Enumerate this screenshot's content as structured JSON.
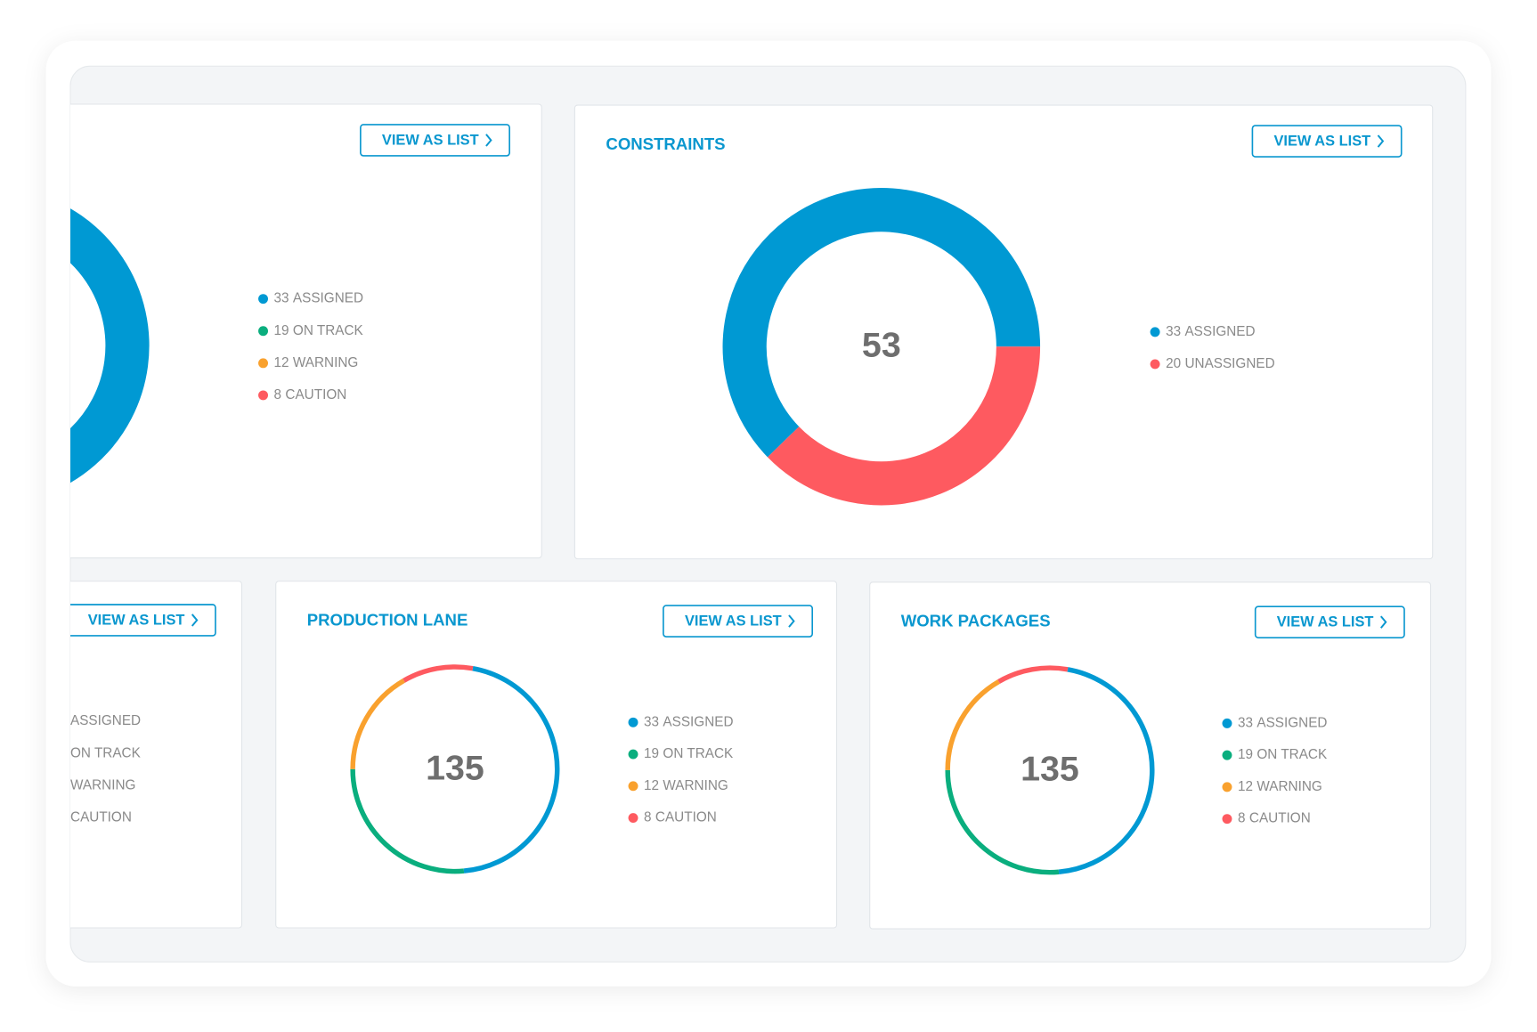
{
  "buttons": [
    "VIEW AS LIST",
    "VIEW AS LIST",
    "VIEW AS LIST",
    "VIEW AS LIST",
    "VIEW AS LIST"
  ],
  "chart_data": [
    {
      "type": "donut",
      "categories": [
        "ASSIGNED",
        "ON TRACK",
        "WARNING",
        "CAUTION"
      ],
      "values": [
        33,
        19,
        12,
        8
      ],
      "colors": [
        "#0099d3",
        "#0aae7e",
        "#f9a12e",
        "#fe5a60"
      ]
    },
    {
      "type": "donut",
      "title": "CONSTRAINTS",
      "center": 53,
      "categories": [
        "ASSIGNED",
        "UNASSIGNED"
      ],
      "values": [
        33,
        20
      ],
      "colors": [
        "#0099d3",
        "#fe5a60"
      ]
    },
    {
      "type": "donut",
      "categories": [
        "ASSIGNED",
        "ON TRACK",
        "WARNING",
        "CAUTION"
      ]
    },
    {
      "type": "donut",
      "title": "PRODUCTION LANE",
      "center": 135,
      "categories": [
        "ASSIGNED",
        "ON TRACK",
        "WARNING",
        "CAUTION"
      ],
      "values": [
        33,
        19,
        12,
        8
      ],
      "colors": [
        "#0099d3",
        "#0aae7e",
        "#f9a12e",
        "#fe5a60"
      ]
    },
    {
      "type": "donut",
      "title": "WORK PACKAGES",
      "center": 135,
      "categories": [
        "ASSIGNED",
        "ON TRACK",
        "WARNING",
        "CAUTION"
      ],
      "values": [
        33,
        19,
        12,
        8
      ],
      "colors": [
        "#0099d3",
        "#0aae7e",
        "#f9a12e",
        "#fe5a60"
      ]
    }
  ]
}
